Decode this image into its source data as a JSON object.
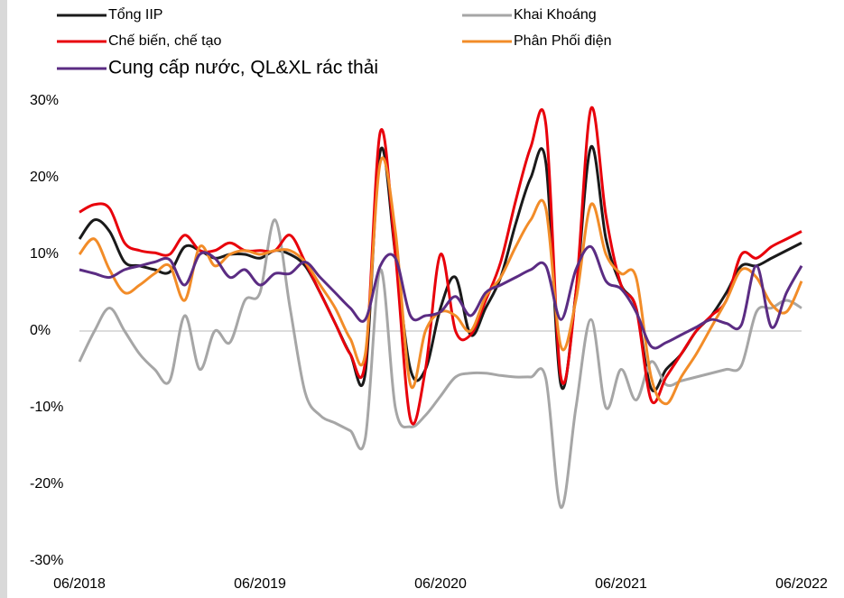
{
  "chart_data": {
    "type": "line",
    "categories": [
      "06/2018",
      null,
      null,
      null,
      null,
      null,
      null,
      null,
      null,
      null,
      null,
      null,
      "06/2019",
      null,
      null,
      null,
      null,
      null,
      null,
      null,
      null,
      null,
      null,
      null,
      "06/2020",
      null,
      null,
      null,
      null,
      null,
      null,
      null,
      null,
      null,
      null,
      null,
      "06/2021",
      null,
      null,
      null,
      null,
      null,
      null,
      null,
      null,
      null,
      null,
      null,
      "06/2022"
    ],
    "series": [
      {
        "name": "Tổng IIP",
        "color": "#1a1a1a",
        "values": [
          12,
          14.5,
          13,
          9,
          8.5,
          8,
          7.7,
          11,
          10.5,
          9.5,
          10,
          10,
          9.5,
          10.5,
          10,
          8.5,
          5,
          1,
          -3,
          -5.5,
          23.5,
          10,
          -5,
          -5,
          3,
          7,
          -0.5,
          3,
          7,
          14,
          20,
          22,
          -7,
          5,
          24,
          12,
          6,
          3,
          -7.5,
          -5,
          -3,
          0,
          2,
          5,
          8.5,
          8.5,
          9.5,
          10.5,
          11.5
        ]
      },
      {
        "name": "Khai Khoáng",
        "color": "#a6a6a6",
        "values": [
          -4,
          0,
          3,
          0,
          -3,
          -5,
          -6.5,
          2,
          -5,
          0,
          -1.5,
          4,
          5,
          14.5,
          3,
          -8,
          -11,
          -12,
          -13,
          -14,
          8,
          -10,
          -12.5,
          -11,
          -8.5,
          -6,
          -5.5,
          -5.5,
          -5.8,
          -6,
          -6,
          -6.2,
          -23,
          -10,
          1.5,
          -10,
          -5,
          -9,
          -4,
          -7,
          -6.5,
          -6,
          -5.5,
          -5,
          -4.5,
          2.5,
          3,
          4,
          3
        ]
      },
      {
        "name": "Chế biến, chế tạo",
        "color": "#e8000b",
        "values": [
          15.5,
          16.5,
          16,
          11.5,
          10.5,
          10.2,
          10,
          12.5,
          10.5,
          10.5,
          11.5,
          10.5,
          10.5,
          10.5,
          12.5,
          9,
          5,
          1,
          -3,
          -4,
          26,
          10,
          -11.5,
          -5,
          10,
          0,
          -0.5,
          4,
          9,
          17,
          24,
          27,
          -6,
          5,
          29,
          15,
          6,
          3,
          -9,
          -6,
          -3,
          0,
          2,
          4,
          10,
          9.5,
          11,
          12,
          13
        ]
      },
      {
        "name": "Phân Phối điện",
        "color": "#f28c28",
        "values": [
          10,
          12,
          8,
          5,
          6,
          7.5,
          8.5,
          4,
          11,
          8.5,
          10,
          10.5,
          10,
          10.5,
          10.5,
          9,
          6,
          3,
          -1,
          -3,
          22,
          13,
          -7,
          0,
          2.5,
          2,
          0,
          4.5,
          7,
          11,
          14.5,
          16,
          -2,
          4,
          16.5,
          10,
          7.5,
          7,
          -6,
          -9.5,
          -6,
          -3,
          0.5,
          4,
          8,
          7,
          3.5,
          2.5,
          6.5
        ]
      },
      {
        "name": "Cung cấp nước, QL&XL rác thải",
        "color": "#5b2c83",
        "values": [
          8,
          7.5,
          7,
          8,
          8.5,
          9,
          9.3,
          6,
          10,
          9.5,
          7,
          8,
          6,
          7.5,
          7.5,
          9,
          7,
          5,
          3,
          1.5,
          8.5,
          9.5,
          2,
          2,
          2.5,
          4.5,
          2,
          5,
          6,
          7,
          8,
          8.5,
          1.5,
          8,
          11,
          6.5,
          5.5,
          2.5,
          -2,
          -1.5,
          -0.5,
          0.5,
          1.5,
          1,
          0.8,
          8.5,
          0.5,
          5,
          8.5
        ]
      }
    ],
    "ylim": [
      -30,
      30
    ],
    "yticks": [
      {
        "value": -30,
        "label": "-30%"
      },
      {
        "value": -20,
        "label": "-20%"
      },
      {
        "value": -10,
        "label": "-10%"
      },
      {
        "value": 0,
        "label": "0%"
      },
      {
        "value": 10,
        "label": "10%"
      },
      {
        "value": 20,
        "label": "20%"
      },
      {
        "value": 30,
        "label": "30%"
      }
    ]
  }
}
